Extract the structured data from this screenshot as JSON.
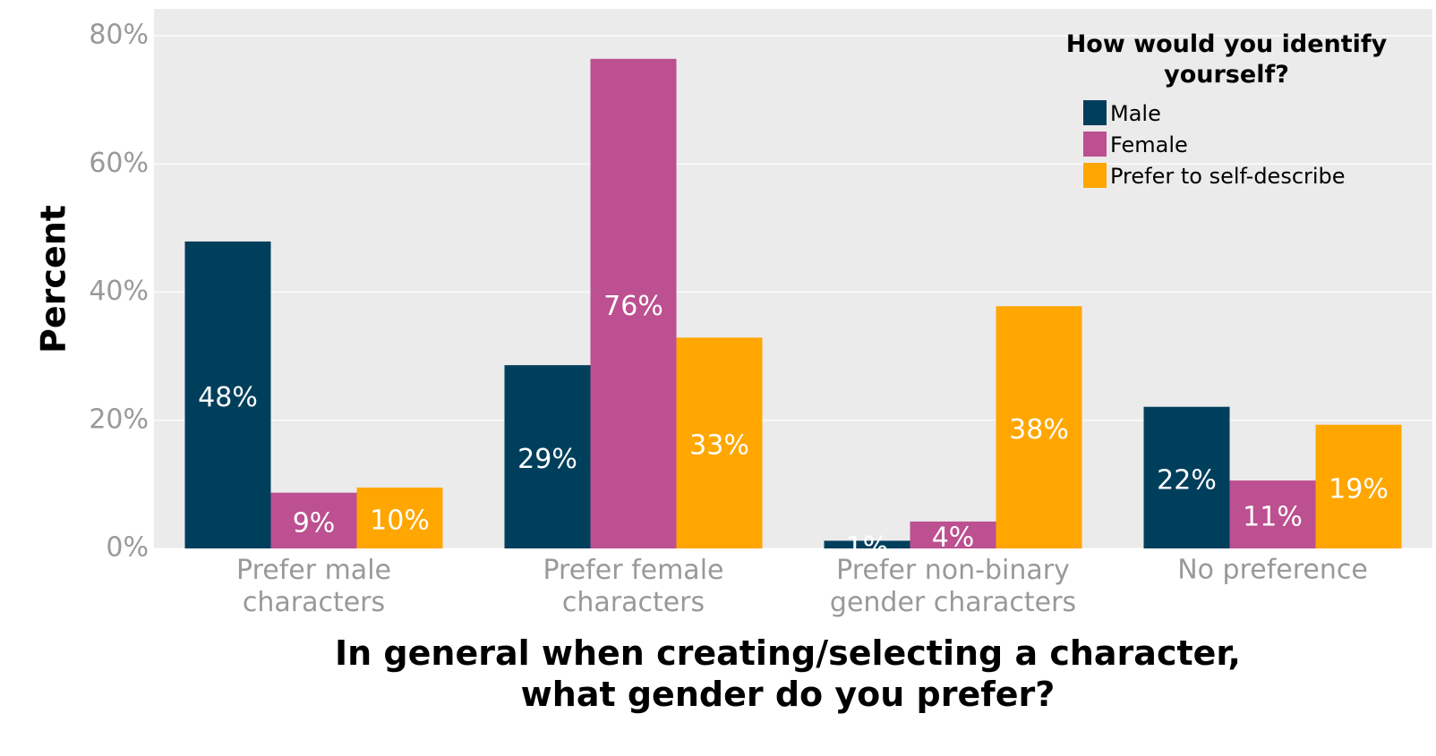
{
  "chart_data": {
    "type": "bar",
    "x_label": "In general when creating/selecting a character,\nwhat gender do you prefer?",
    "y_label": "Percent",
    "categories": [
      "Prefer male\ncharacters",
      "Prefer female\ncharacters",
      "Prefer non-binary\ngender characters",
      "No preference"
    ],
    "legend_title": "How would you identify\nyourself?",
    "legend_position": "top-right",
    "grid": true,
    "ylim": [
      0,
      80
    ],
    "yticks": [
      {
        "value": 0,
        "label": "0%"
      },
      {
        "value": 20,
        "label": "20%"
      },
      {
        "value": 40,
        "label": "40%"
      },
      {
        "value": 60,
        "label": "60%"
      },
      {
        "value": 80,
        "label": "80%"
      }
    ],
    "series": [
      {
        "name": "Male",
        "color": "#003f5c",
        "values": [
          47.9,
          28.6,
          1.2,
          22.1
        ],
        "value_labels": [
          "48%",
          "29%",
          "1%",
          "22%"
        ]
      },
      {
        "name": "Female",
        "color": "#bc5090",
        "values": [
          8.7,
          76.4,
          4.2,
          10.6
        ],
        "value_labels": [
          "9%",
          "76%",
          "4%",
          "11%"
        ]
      },
      {
        "name": "Prefer to self-describe",
        "color": "#ffa600",
        "values": [
          9.5,
          32.9,
          37.8,
          19.3
        ],
        "value_labels": [
          "10%",
          "33%",
          "38%",
          "19%"
        ]
      }
    ]
  }
}
